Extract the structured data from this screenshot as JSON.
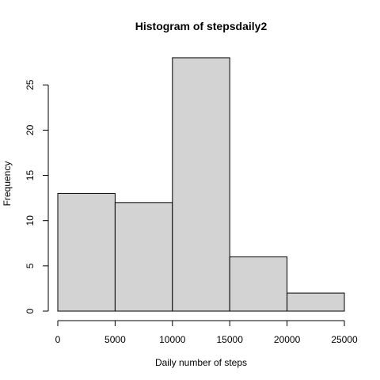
{
  "chart_data": {
    "type": "bar",
    "title": "Histogram of stepsdaily2",
    "xlabel": "Daily number of steps",
    "ylabel": "Frequency",
    "bin_edges": [
      0,
      5000,
      10000,
      15000,
      20000,
      25000
    ],
    "values": [
      13,
      12,
      28,
      6,
      2
    ],
    "xlim": [
      0,
      25000
    ],
    "ylim": [
      0,
      28
    ],
    "x_ticks": [
      0,
      5000,
      10000,
      15000,
      20000,
      25000
    ],
    "x_tick_labels": [
      "0",
      "5000",
      "10000",
      "15000",
      "20000",
      "25000"
    ],
    "y_ticks": [
      0,
      5,
      10,
      15,
      20,
      25
    ],
    "y_tick_labels": [
      "0",
      "5",
      "10",
      "15",
      "20",
      "25"
    ],
    "grid": false,
    "bar_color": "#d3d3d3",
    "edge_color": "#000000"
  }
}
